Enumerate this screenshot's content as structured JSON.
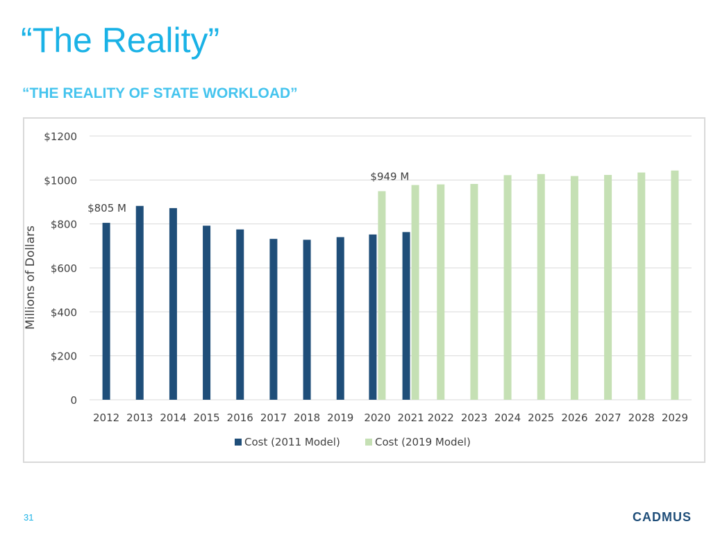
{
  "slide": {
    "title": "“The Reality”",
    "subtitle": "“THE REALITY OF STATE WORKLOAD”",
    "page_number": "31",
    "brand": "CADMUS"
  },
  "chart_data": {
    "type": "bar",
    "title": "",
    "xlabel": "",
    "ylabel": "Millions of Dollars",
    "ylim": [
      0,
      1200
    ],
    "yticks": [
      0,
      200,
      400,
      600,
      800,
      1000,
      1200
    ],
    "ytick_labels": [
      "0",
      "$200",
      "$400",
      "$600",
      "$800",
      "$1000",
      "$1200"
    ],
    "grid": true,
    "legend": "bottom",
    "categories": [
      "2012",
      "2013",
      "2014",
      "2015",
      "2016",
      "2017",
      "2018",
      "2019",
      "2020",
      "2021",
      "2022",
      "2023",
      "2024",
      "2025",
      "2026",
      "2027",
      "2028",
      "2029"
    ],
    "series": [
      {
        "name": "Cost (2011 Model)",
        "color": "#1f4e79",
        "values": [
          805,
          882,
          872,
          792,
          775,
          732,
          728,
          740,
          752,
          763,
          null,
          null,
          null,
          null,
          null,
          null,
          null,
          null
        ]
      },
      {
        "name": "Cost (2019 Model)",
        "color": "#c5e0b4",
        "values": [
          null,
          null,
          null,
          null,
          null,
          null,
          null,
          null,
          949,
          977,
          980,
          982,
          1022,
          1027,
          1018,
          1023,
          1034,
          1043
        ]
      }
    ],
    "annotations": [
      {
        "text": "$805 M",
        "series": 0,
        "category": "2012"
      },
      {
        "text": "$949 M",
        "series": 1,
        "category": "2020"
      }
    ]
  }
}
